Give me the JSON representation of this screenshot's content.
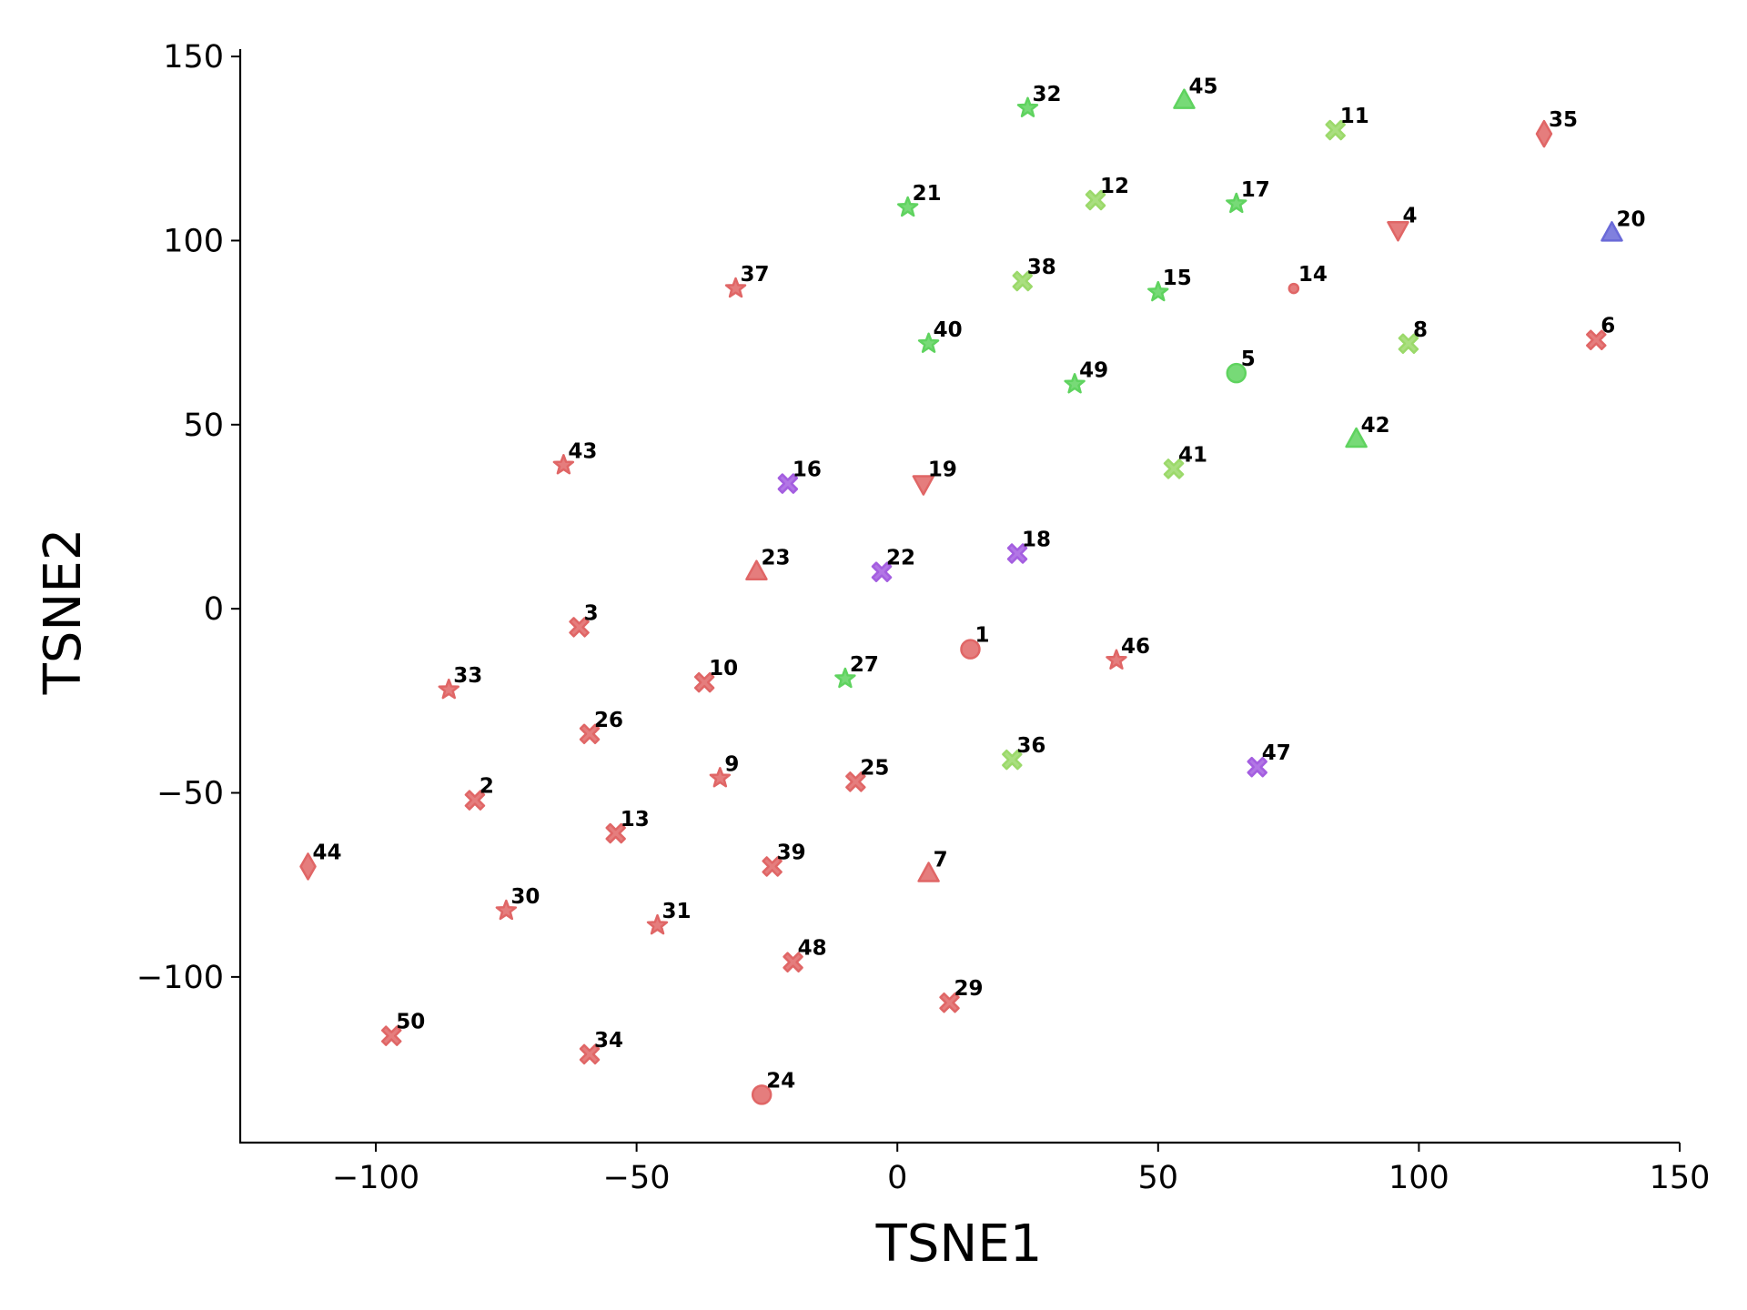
{
  "chart_data": {
    "type": "scatter",
    "xlabel": "TSNE1",
    "ylabel": "TSNE2",
    "xlim": [
      -126,
      150
    ],
    "ylim": [
      -145,
      152
    ],
    "xticks": [
      -100,
      -50,
      0,
      50,
      100,
      150
    ],
    "yticks": [
      -100,
      -50,
      0,
      50,
      100,
      150
    ],
    "xtick_labels": [
      "−100",
      "−50",
      "0",
      "50",
      "100",
      "150"
    ],
    "ytick_labels": [
      "−100",
      "−50",
      "0",
      "50",
      "100",
      "150"
    ],
    "grid": false,
    "legend": "none",
    "colors": {
      "red": "#e06666",
      "green": "#5fd35f",
      "lime": "#9bd96a",
      "purple": "#a45ee0",
      "blue": "#6a6ad8"
    },
    "points": [
      {
        "label": "1",
        "x": 14,
        "y": -11,
        "marker": "circle",
        "color": "red"
      },
      {
        "label": "2",
        "x": -81,
        "y": -52,
        "marker": "x",
        "color": "red"
      },
      {
        "label": "3",
        "x": -61,
        "y": -5,
        "marker": "x",
        "color": "red"
      },
      {
        "label": "4",
        "x": 96,
        "y": 103,
        "marker": "triangle-down",
        "color": "red"
      },
      {
        "label": "5",
        "x": 65,
        "y": 64,
        "marker": "circle",
        "color": "green"
      },
      {
        "label": "6",
        "x": 134,
        "y": 73,
        "marker": "x",
        "color": "red"
      },
      {
        "label": "7",
        "x": 6,
        "y": -72,
        "marker": "triangle-up",
        "color": "red"
      },
      {
        "label": "8",
        "x": 98,
        "y": 72,
        "marker": "x",
        "color": "lime"
      },
      {
        "label": "9",
        "x": -34,
        "y": -46,
        "marker": "star",
        "color": "red"
      },
      {
        "label": "10",
        "x": -37,
        "y": -20,
        "marker": "x",
        "color": "red"
      },
      {
        "label": "11",
        "x": 84,
        "y": 130,
        "marker": "x",
        "color": "lime"
      },
      {
        "label": "12",
        "x": 38,
        "y": 111,
        "marker": "x",
        "color": "lime"
      },
      {
        "label": "13",
        "x": -54,
        "y": -61,
        "marker": "x",
        "color": "red"
      },
      {
        "label": "14",
        "x": 76,
        "y": 87,
        "marker": "circle-small",
        "color": "red"
      },
      {
        "label": "15",
        "x": 50,
        "y": 86,
        "marker": "star",
        "color": "green"
      },
      {
        "label": "16",
        "x": -21,
        "y": 34,
        "marker": "x",
        "color": "purple"
      },
      {
        "label": "17",
        "x": 65,
        "y": 110,
        "marker": "star",
        "color": "green"
      },
      {
        "label": "18",
        "x": 23,
        "y": 15,
        "marker": "x",
        "color": "purple"
      },
      {
        "label": "19",
        "x": 5,
        "y": 34,
        "marker": "triangle-down",
        "color": "red"
      },
      {
        "label": "20",
        "x": 137,
        "y": 102,
        "marker": "triangle-up",
        "color": "blue"
      },
      {
        "label": "21",
        "x": 2,
        "y": 109,
        "marker": "star",
        "color": "green"
      },
      {
        "label": "22",
        "x": -3,
        "y": 10,
        "marker": "x",
        "color": "purple"
      },
      {
        "label": "23",
        "x": -27,
        "y": 10,
        "marker": "triangle-up",
        "color": "red"
      },
      {
        "label": "24",
        "x": -26,
        "y": -132,
        "marker": "circle",
        "color": "red"
      },
      {
        "label": "25",
        "x": -8,
        "y": -47,
        "marker": "x",
        "color": "red"
      },
      {
        "label": "26",
        "x": -59,
        "y": -34,
        "marker": "x",
        "color": "red"
      },
      {
        "label": "27",
        "x": -10,
        "y": -19,
        "marker": "star",
        "color": "green"
      },
      {
        "label": "29",
        "x": 10,
        "y": -107,
        "marker": "x",
        "color": "red"
      },
      {
        "label": "30",
        "x": -75,
        "y": -82,
        "marker": "star",
        "color": "red"
      },
      {
        "label": "31",
        "x": -46,
        "y": -86,
        "marker": "star",
        "color": "red"
      },
      {
        "label": "32",
        "x": 25,
        "y": 136,
        "marker": "star",
        "color": "green"
      },
      {
        "label": "33",
        "x": -86,
        "y": -22,
        "marker": "star",
        "color": "red"
      },
      {
        "label": "34",
        "x": -59,
        "y": -121,
        "marker": "x",
        "color": "red"
      },
      {
        "label": "35",
        "x": 124,
        "y": 129,
        "marker": "diamond",
        "color": "red"
      },
      {
        "label": "36",
        "x": 22,
        "y": -41,
        "marker": "x",
        "color": "lime"
      },
      {
        "label": "37",
        "x": -31,
        "y": 87,
        "marker": "star",
        "color": "red"
      },
      {
        "label": "38",
        "x": 24,
        "y": 89,
        "marker": "x",
        "color": "lime"
      },
      {
        "label": "39",
        "x": -24,
        "y": -70,
        "marker": "x",
        "color": "red"
      },
      {
        "label": "40",
        "x": 6,
        "y": 72,
        "marker": "star",
        "color": "green"
      },
      {
        "label": "41",
        "x": 53,
        "y": 38,
        "marker": "x",
        "color": "lime"
      },
      {
        "label": "42",
        "x": 88,
        "y": 46,
        "marker": "triangle-up",
        "color": "green"
      },
      {
        "label": "43",
        "x": -64,
        "y": 39,
        "marker": "star",
        "color": "red"
      },
      {
        "label": "44",
        "x": -113,
        "y": -70,
        "marker": "diamond",
        "color": "red"
      },
      {
        "label": "45",
        "x": 55,
        "y": 138,
        "marker": "triangle-up",
        "color": "green"
      },
      {
        "label": "46",
        "x": 42,
        "y": -14,
        "marker": "star",
        "color": "red"
      },
      {
        "label": "47",
        "x": 69,
        "y": -43,
        "marker": "x",
        "color": "purple"
      },
      {
        "label": "48",
        "x": -20,
        "y": -96,
        "marker": "x",
        "color": "red"
      },
      {
        "label": "49",
        "x": 34,
        "y": 61,
        "marker": "star",
        "color": "green"
      },
      {
        "label": "50",
        "x": -97,
        "y": -116,
        "marker": "x",
        "color": "red"
      }
    ]
  }
}
